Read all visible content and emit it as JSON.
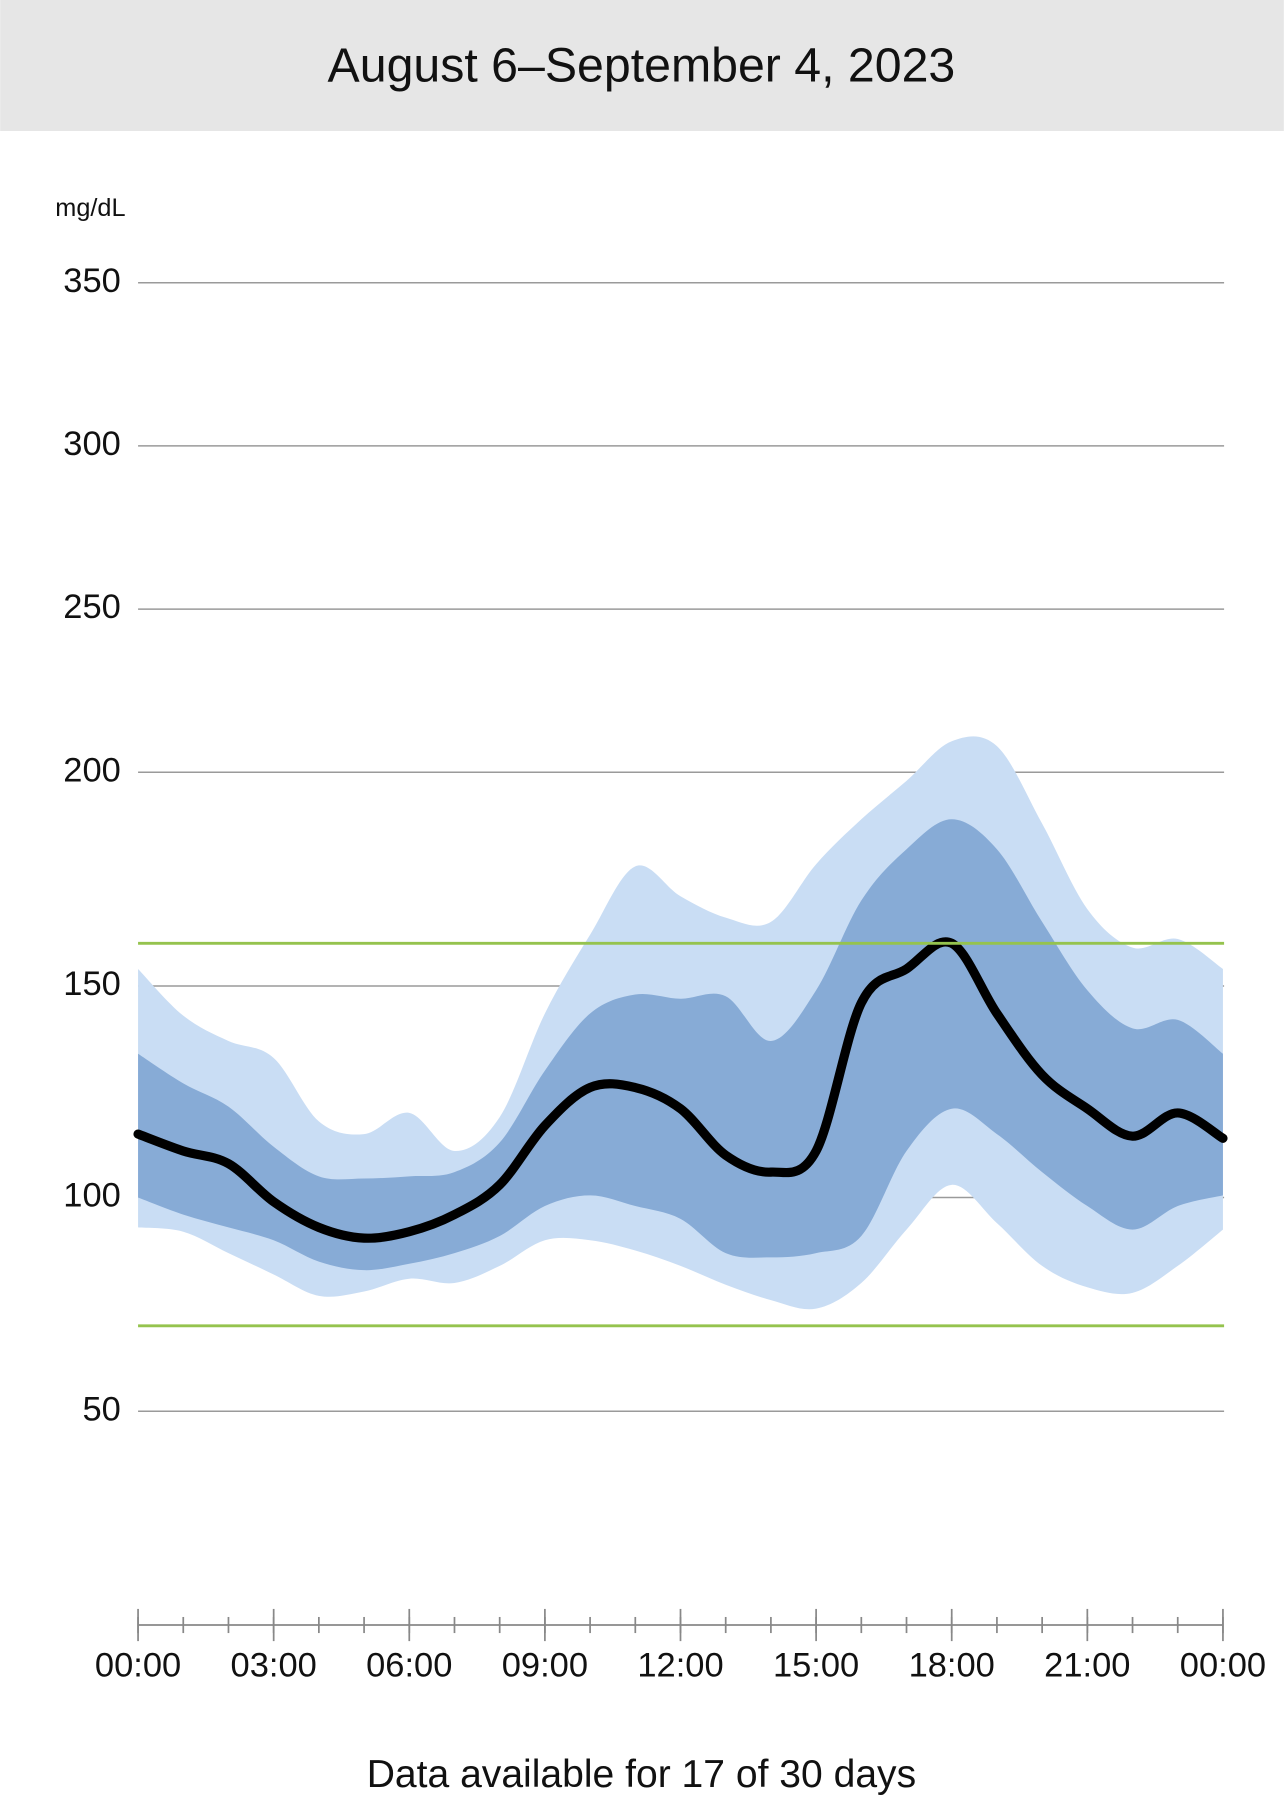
{
  "chart_data": {
    "type": "agp",
    "title": "August 6–September 4, 2023",
    "y_label": "mg/dL",
    "footer": "Data available for 17 of 30 days",
    "footer_color": "#d23b35",
    "x": [
      0,
      1,
      2,
      3,
      4,
      5,
      6,
      7,
      8,
      9,
      10,
      11,
      12,
      13,
      14,
      15,
      16,
      17,
      18,
      19,
      20,
      21,
      22,
      23,
      24
    ],
    "xlim": [
      0,
      24
    ],
    "xticks": [
      {
        "value": 0,
        "label": "00:00"
      },
      {
        "value": 3,
        "label": "03:00"
      },
      {
        "value": 6,
        "label": "06:00"
      },
      {
        "value": 9,
        "label": "09:00"
      },
      {
        "value": 12,
        "label": "12:00"
      },
      {
        "value": 15,
        "label": "15:00"
      },
      {
        "value": 18,
        "label": "18:00"
      },
      {
        "value": 21,
        "label": "21:00"
      },
      {
        "value": 24,
        "label": "00:00"
      }
    ],
    "xminorticks": [
      0,
      1,
      2,
      3,
      4,
      5,
      6,
      7,
      8,
      9,
      10,
      11,
      12,
      13,
      14,
      15,
      16,
      17,
      18,
      19,
      20,
      21,
      22,
      23,
      24
    ],
    "ylim": [
      0,
      350
    ],
    "yticks": [
      50,
      100,
      150,
      200,
      250,
      300,
      350
    ],
    "grid": true,
    "reference_lines": [
      70,
      160
    ],
    "reference_color": "#95c34e",
    "series": [
      {
        "color": "#c9ddf4",
        "values": [
          93,
          92,
          87,
          82,
          77,
          78,
          81,
          80,
          84,
          90,
          90,
          87.6,
          84,
          79.6,
          76,
          74,
          80,
          92.5,
          103,
          94,
          84,
          79,
          77.7,
          84,
          92.5
        ]
      },
      {
        "color": "#87abd6",
        "values": [
          100,
          96,
          93,
          90,
          85,
          83,
          84.5,
          87,
          91,
          98,
          100.5,
          98,
          95,
          87,
          86,
          87,
          91,
          111,
          121,
          115,
          106,
          98,
          92.5,
          98,
          100.5
        ]
      },
      {
        "color": "#000000",
        "values": [
          115,
          111,
          108,
          99,
          93,
          90.5,
          92,
          96,
          103,
          117,
          126,
          126,
          121,
          110,
          106,
          111,
          146,
          154,
          160,
          143.5,
          129,
          121,
          114.5,
          120,
          114
        ]
      },
      {
        "color": "#87abd6",
        "values": [
          134,
          127,
          121.5,
          112,
          105,
          104.5,
          105,
          106,
          113,
          130,
          143.5,
          148,
          147,
          147.6,
          137,
          149,
          170,
          182,
          189,
          182,
          165,
          149,
          140,
          142,
          134
        ]
      },
      {
        "color": "#c9ddf4",
        "values": [
          154,
          143,
          137,
          133,
          118,
          115,
          120,
          111,
          119,
          143.5,
          162,
          178,
          171,
          166,
          165,
          178.5,
          189,
          198,
          209.5,
          208,
          188,
          168,
          159,
          161,
          154
        ]
      }
    ]
  }
}
